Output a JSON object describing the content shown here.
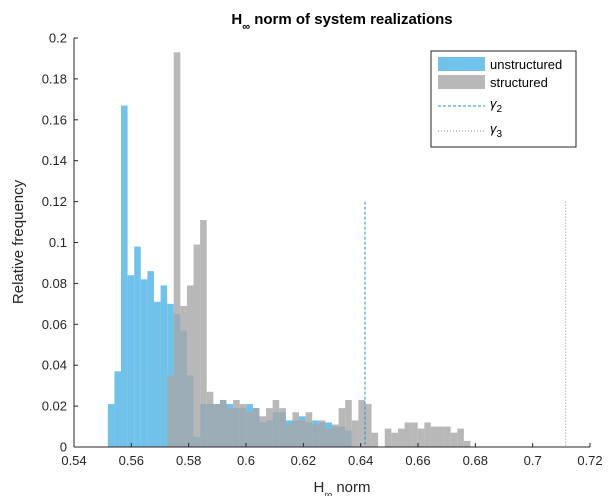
{
  "chart_data": {
    "type": "bar",
    "title_main": "H",
    "title_sub": "∞",
    "title_rest": " norm of system realizations",
    "xlabel_main": "H",
    "xlabel_sub": "∞",
    "xlabel_rest": " norm",
    "ylabel": "Relative frequency",
    "xlim": [
      0.54,
      0.72
    ],
    "ylim": [
      0,
      0.2
    ],
    "xticks": [
      "0.54",
      "0.56",
      "0.58",
      "0.6",
      "0.62",
      "0.64",
      "0.66",
      "0.68",
      "0.7",
      "0.72"
    ],
    "yticks": [
      "0",
      "0.02",
      "0.04",
      "0.06",
      "0.08",
      "0.1",
      "0.12",
      "0.14",
      "0.16",
      "0.18",
      "0.2"
    ],
    "grid": false,
    "legend_position": "top-right",
    "bin_width": 0.0023,
    "series": [
      {
        "name": "unstructured",
        "color": "#4DB3E6",
        "opacity": 0.8,
        "bins_start": [
          0.5518,
          0.5541,
          0.5564,
          0.5587,
          0.561,
          0.5633,
          0.5656,
          0.5679,
          0.5702,
          0.5725,
          0.5748,
          0.5771,
          0.5794,
          0.5817,
          0.584,
          0.5863,
          0.5886,
          0.5909,
          0.5932,
          0.5955,
          0.5978,
          0.6001,
          0.6024,
          0.6047,
          0.607,
          0.6093,
          0.6116,
          0.6139,
          0.6162,
          0.6185,
          0.6208,
          0.6231,
          0.6254,
          0.6277,
          0.63,
          0.6323,
          0.6346
        ],
        "values": [
          0.021,
          0.037,
          0.167,
          0.084,
          0.098,
          0.082,
          0.086,
          0.071,
          0.079,
          0.07,
          0.065,
          0.057,
          0.035,
          0.005,
          0.021,
          0.021,
          0.021,
          0.023,
          0.021,
          0.019,
          0.019,
          0.021,
          0.019,
          0.012,
          0.013,
          0.017,
          0.017,
          0.013,
          0.013,
          0.015,
          0.012,
          0.013,
          0.012,
          0.012,
          0.01,
          0.01,
          0.008
        ]
      },
      {
        "name": "structured",
        "color": "#A6A6A6",
        "opacity": 0.8,
        "bins_start": [
          0.5725,
          0.5748,
          0.5771,
          0.5794,
          0.5817,
          0.584,
          0.5863,
          0.5886,
          0.5909,
          0.5932,
          0.5955,
          0.5978,
          0.6001,
          0.6024,
          0.6047,
          0.607,
          0.6093,
          0.6116,
          0.6139,
          0.6162,
          0.6185,
          0.6208,
          0.6231,
          0.6254,
          0.6277,
          0.63,
          0.6323,
          0.6346,
          0.6369,
          0.6392,
          0.6415,
          0.6438,
          0.6461,
          0.6484,
          0.6507,
          0.653,
          0.6553,
          0.6576,
          0.6599,
          0.6622,
          0.6645,
          0.6668,
          0.6691,
          0.6714,
          0.6737,
          0.676,
          0.6783
        ],
        "values": [
          0.035,
          0.193,
          0.069,
          0.079,
          0.099,
          0.111,
          0.027,
          0.021,
          0.023,
          0.019,
          0.023,
          0.021,
          0.017,
          0.019,
          0.015,
          0.019,
          0.023,
          0.019,
          0.011,
          0.017,
          0.013,
          0.017,
          0.011,
          0.013,
          0.009,
          0.011,
          0.019,
          0.023,
          0.013,
          0.023,
          0.021,
          0.007,
          0.0,
          0.009,
          0.007,
          0.009,
          0.012,
          0.012,
          0.009,
          0.012,
          0.01,
          0.01,
          0.01,
          0.007,
          0.009,
          0.003,
          0.0
        ]
      }
    ],
    "reference_lines": [
      {
        "name_main": "γ",
        "name_sub": "2",
        "x": 0.6415,
        "y_top": 0.12,
        "color": "#1F8FD8",
        "style": "dashed"
      },
      {
        "name_main": "γ",
        "name_sub": "3",
        "x": 0.7115,
        "y_top": 0.12,
        "color": "#8A8A8A",
        "style": "dotted"
      }
    ]
  }
}
